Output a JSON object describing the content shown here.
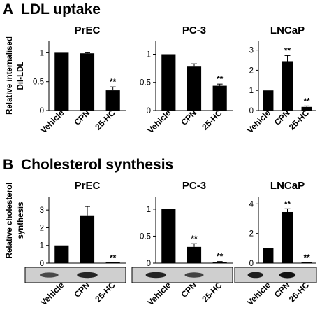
{
  "panels": [
    {
      "letter": "A",
      "title": "LDL uptake",
      "ylabel_lines": [
        "Relative internalised",
        "DiI-LDL"
      ]
    },
    {
      "letter": "B",
      "title": "Cholesterol synthesis",
      "ylabel_lines": [
        "Relative cholesterol",
        "synthesis"
      ]
    }
  ],
  "chart_data": [
    {
      "type": "bar",
      "panel": "A",
      "title": "PrEC",
      "categories": [
        "Vehicle",
        "CPN",
        "25-HC"
      ],
      "values": [
        1.0,
        0.99,
        0.35
      ],
      "errors": [
        0,
        0.01,
        0.06
      ],
      "annotations": [
        "",
        "",
        "**"
      ],
      "ylim": [
        0,
        1.15
      ],
      "yticks": [
        0,
        0.5,
        1
      ],
      "ytick_labels": [
        "0",
        "0.5",
        "1"
      ]
    },
    {
      "type": "bar",
      "panel": "A",
      "title": "PC-3",
      "categories": [
        "Vehicle",
        "CPN",
        "25-HC"
      ],
      "values": [
        1.0,
        0.78,
        0.44
      ],
      "errors": [
        0,
        0.05,
        0.03
      ],
      "annotations": [
        "",
        "",
        "**"
      ],
      "ylim": [
        0,
        1.18
      ],
      "yticks": [
        0,
        0.5,
        1
      ],
      "ytick_labels": [
        "0",
        "0.5",
        "1"
      ]
    },
    {
      "type": "bar",
      "panel": "A",
      "title": "LNCaP",
      "categories": [
        "Vehicle",
        "CPN",
        "25-HC"
      ],
      "values": [
        1.0,
        2.45,
        0.18
      ],
      "errors": [
        0,
        0.28,
        0.05
      ],
      "annotations": [
        "",
        "**",
        "**"
      ],
      "ylim": [
        0,
        3.3
      ],
      "yticks": [
        0,
        1,
        2,
        3
      ],
      "ytick_labels": [
        "0",
        "1",
        "2",
        "3"
      ]
    },
    {
      "type": "bar",
      "panel": "B",
      "title": "PrEC",
      "categories": [
        "Vehicle",
        "CPN",
        "25-HC"
      ],
      "values": [
        1.0,
        2.7,
        0.02
      ],
      "errors": [
        0,
        0.5,
        0
      ],
      "annotations": [
        "",
        "",
        "**"
      ],
      "ylim": [
        0,
        3.6
      ],
      "yticks": [
        0,
        1,
        2,
        3
      ],
      "ytick_labels": [
        "0",
        "1",
        "2",
        "3"
      ],
      "blot_bands": [
        0.55,
        0.85,
        0
      ]
    },
    {
      "type": "bar",
      "panel": "B",
      "title": "PC-3",
      "categories": [
        "Vehicle",
        "CPN",
        "25-HC"
      ],
      "values": [
        1.0,
        0.3,
        0.02
      ],
      "errors": [
        0,
        0.06,
        0.01
      ],
      "annotations": [
        "",
        "**",
        "**"
      ],
      "ylim": [
        0,
        1.18
      ],
      "yticks": [
        0,
        0.5,
        1
      ],
      "ytick_labels": [
        "0",
        "0.5",
        "1"
      ],
      "blot_bands": [
        0.85,
        0.6,
        0
      ]
    },
    {
      "type": "bar",
      "panel": "B",
      "title": "LNCaP",
      "categories": [
        "Vehicle",
        "CPN",
        "25-HC"
      ],
      "values": [
        1.0,
        3.45,
        0.04
      ],
      "errors": [
        0,
        0.22,
        0.01
      ],
      "annotations": [
        "",
        "**",
        "**"
      ],
      "ylim": [
        0,
        4.3
      ],
      "yticks": [
        0,
        2,
        4
      ],
      "ytick_labels": [
        "0",
        "2",
        "4"
      ],
      "blot_bands": [
        0.9,
        1.0,
        0
      ]
    }
  ]
}
